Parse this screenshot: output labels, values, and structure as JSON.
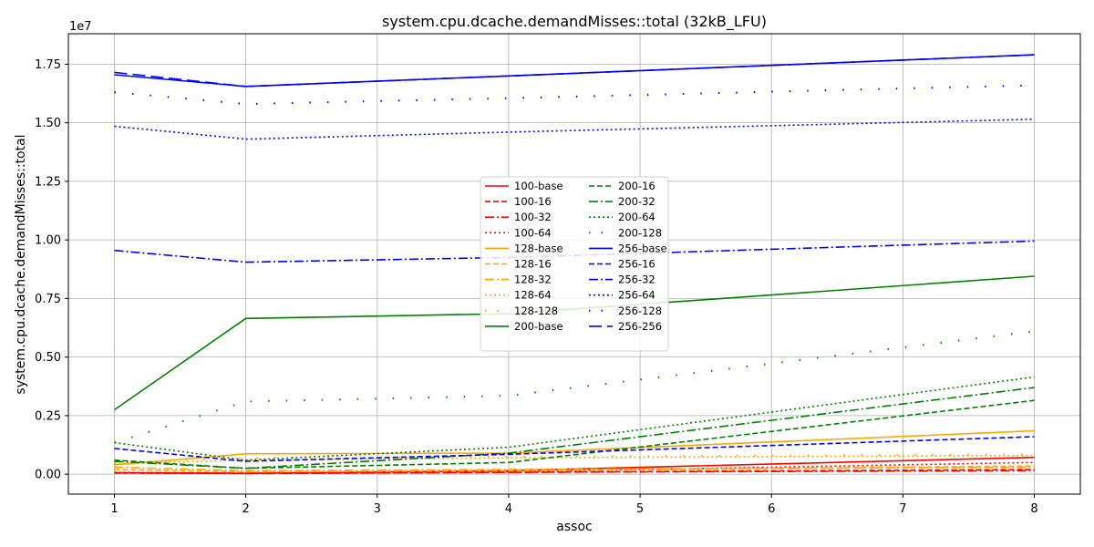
{
  "chart_data": {
    "type": "line",
    "title": "system.cpu.dcache.demandMisses::total (32kB_LFU)",
    "xlabel": "assoc",
    "ylabel": "system.cpu.dcache.demandMisses::total",
    "scale_label": "1e7",
    "x": [
      1,
      2,
      4,
      8
    ],
    "xticks": [
      "1",
      "2",
      "3",
      "4",
      "5",
      "6",
      "7",
      "8"
    ],
    "yticks": [
      "0.00",
      "0.25",
      "0.50",
      "0.75",
      "1.00",
      "1.25",
      "1.50",
      "1.75"
    ],
    "ytick_values": [
      0,
      2500000,
      5000000,
      7500000,
      10000000,
      12500000,
      15000000,
      17500000
    ],
    "xlim": [
      0.65,
      8.35
    ],
    "ylim": [
      -850000,
      18800000
    ],
    "grid": true,
    "legend_position": "center",
    "series": [
      {
        "name": "100-base",
        "color": "#ff0000",
        "dash": "solid",
        "values": [
          60000,
          40000,
          150000,
          720000
        ]
      },
      {
        "name": "100-16",
        "color": "#ff0000",
        "dash": "dashed",
        "values": [
          50000,
          30000,
          80000,
          200000
        ]
      },
      {
        "name": "100-32",
        "color": "#ff0000",
        "dash": "dashdot",
        "values": [
          60000,
          30000,
          80000,
          150000
        ]
      },
      {
        "name": "100-64",
        "color": "#ff0000",
        "dash": "dotted",
        "values": [
          80000,
          40000,
          100000,
          500000
        ]
      },
      {
        "name": "128-base",
        "color": "#ffa500",
        "dash": "solid",
        "values": [
          400000,
          870000,
          900000,
          1850000
        ]
      },
      {
        "name": "128-16",
        "color": "#ffa500",
        "dash": "dashed",
        "values": [
          200000,
          100000,
          150000,
          350000
        ]
      },
      {
        "name": "128-32",
        "color": "#ffa500",
        "dash": "dashdot",
        "values": [
          300000,
          150000,
          200000,
          300000
        ]
      },
      {
        "name": "128-64",
        "color": "#ffa500",
        "dash": "dotted",
        "values": [
          450000,
          600000,
          700000,
          800000
        ]
      },
      {
        "name": "128-128",
        "color": "#ffa500",
        "dash": "sparse",
        "values": [
          500000,
          700000,
          750000,
          850000
        ]
      },
      {
        "name": "200-base",
        "color": "#008000",
        "dash": "solid",
        "values": [
          2750000,
          6650000,
          6850000,
          8450000
        ]
      },
      {
        "name": "200-16",
        "color": "#008000",
        "dash": "dashed",
        "values": [
          600000,
          250000,
          500000,
          3150000
        ]
      },
      {
        "name": "200-32",
        "color": "#008000",
        "dash": "dashdot",
        "values": [
          550000,
          250000,
          900000,
          3700000
        ]
      },
      {
        "name": "200-64",
        "color": "#008000",
        "dash": "dotted",
        "values": [
          1350000,
          600000,
          1150000,
          4150000
        ]
      },
      {
        "name": "200-128",
        "color": "#008000",
        "dash": "sparse",
        "values": [
          1350000,
          3100000,
          3350000,
          6100000
        ]
      },
      {
        "name": "256-base",
        "color": "#0000ff",
        "dash": "solid",
        "values": [
          17050000,
          16550000,
          17000000,
          17900000
        ]
      },
      {
        "name": "256-16",
        "color": "#0000ff",
        "dash": "dashed",
        "values": [
          1100000,
          550000,
          850000,
          1600000
        ]
      },
      {
        "name": "256-32",
        "color": "#0000ff",
        "dash": "dashdot",
        "values": [
          9550000,
          9050000,
          9250000,
          9950000
        ]
      },
      {
        "name": "256-64",
        "color": "#0000ff",
        "dash": "dotted",
        "values": [
          14850000,
          14300000,
          14600000,
          15150000
        ]
      },
      {
        "name": "256-128",
        "color": "#0000ff",
        "dash": "sparse",
        "values": [
          16300000,
          15800000,
          16050000,
          16600000
        ]
      },
      {
        "name": "256-256",
        "color": "#0000ff",
        "dash": "longdash",
        "values": [
          17150000,
          16550000,
          17000000,
          17900000
        ]
      }
    ]
  }
}
